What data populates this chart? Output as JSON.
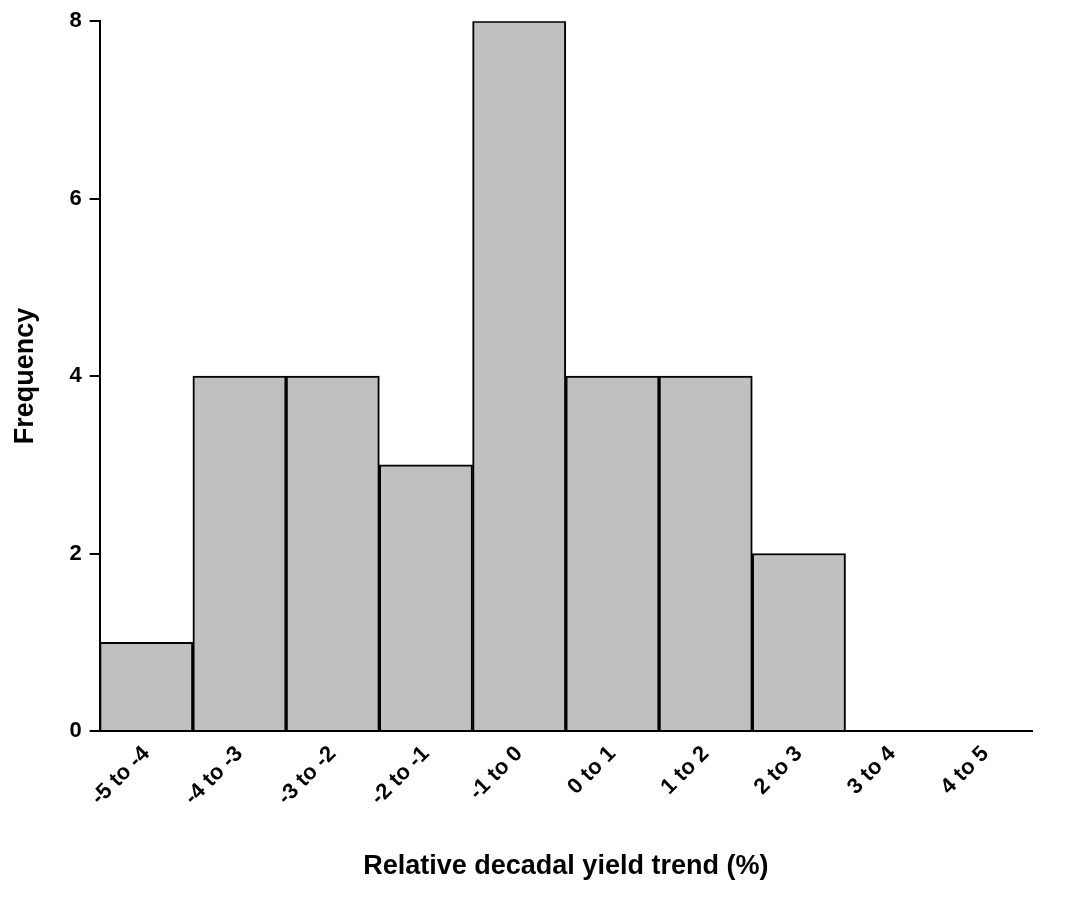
{
  "chart_data": {
    "type": "bar",
    "xlabel": "Relative decadal yield trend (%)",
    "ylabel": "Frequency",
    "categories": [
      "-5 to -4",
      "-4 to -3",
      "-3 to -2",
      "-2 to -1",
      "-1 to 0",
      "0 to 1",
      "1 to 2",
      "2 to 3",
      "3 to 4",
      "4 to 5"
    ],
    "values": [
      1,
      4,
      4,
      3,
      8,
      4,
      4,
      2,
      0,
      0
    ],
    "color": "#c0c0c0",
    "ylim": [
      0,
      8
    ],
    "yticks": [
      0,
      2,
      4,
      6,
      8
    ]
  }
}
